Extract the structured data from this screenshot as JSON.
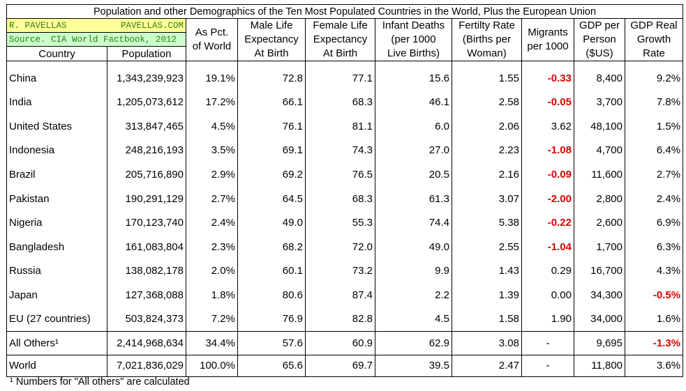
{
  "title": "Population and other Demographics of the Ten Most Populated Countries in the World, Plus the European Union",
  "credit": {
    "author": "R. PAVELLAS",
    "site": "PAVELLAS.COM"
  },
  "source": "Source. CIA World Factbook, 2012",
  "table": {
    "headers": [
      [
        "Country"
      ],
      [
        "Population"
      ],
      [
        "As Pct.",
        "of World"
      ],
      [
        "Male Life",
        "Expectancy",
        "At Birth"
      ],
      [
        "Female Life",
        "Expectancy",
        "At Birth"
      ],
      [
        "Infant Deaths",
        "(per 1000",
        "Live Births)"
      ],
      [
        "Fertilty Rate",
        "(Births per",
        "Woman)"
      ],
      [
        "Migrants",
        "per 1000"
      ],
      [
        "GDP per",
        "Person",
        "($US)"
      ],
      [
        "GDP Real",
        "Growth",
        "Rate"
      ]
    ],
    "rows": [
      [
        "China",
        "1,343,239,923",
        "19.1%",
        "72.8",
        "77.1",
        "15.6",
        "1.55",
        "-0.33",
        "8,400",
        "9.2%"
      ],
      [
        "India",
        "1,205,073,612",
        "17.2%",
        "66.1",
        "68.3",
        "46.1",
        "2.58",
        "-0.05",
        "3,700",
        "7.8%"
      ],
      [
        "United States",
        "313,847,465",
        "4.5%",
        "76.1",
        "81.1",
        "6.0",
        "2.06",
        "3.62",
        "48,100",
        "1.5%"
      ],
      [
        "Indonesia",
        "248,216,193",
        "3.5%",
        "69.1",
        "74.3",
        "27.0",
        "2.23",
        "-1.08",
        "4,700",
        "6.4%"
      ],
      [
        "Brazil",
        "205,716,890",
        "2.9%",
        "69.2",
        "76.5",
        "20.5",
        "2.16",
        "-0.09",
        "11,600",
        "2.7%"
      ],
      [
        "Pakistan",
        "190,291,129",
        "2.7%",
        "64.5",
        "68.3",
        "61.3",
        "3.07",
        "-2.00",
        "2,800",
        "2.4%"
      ],
      [
        "Nigeria",
        "170,123,740",
        "2.4%",
        "49.0",
        "55.3",
        "74.4",
        "5.38",
        "-0.22",
        "2,600",
        "6.9%"
      ],
      [
        "Bangladesh",
        "161,083,804",
        "2.3%",
        "68.2",
        "72.0",
        "49.0",
        "2.55",
        "-1.04",
        "1,700",
        "6.3%"
      ],
      [
        "Russia",
        "138,082,178",
        "2.0%",
        "60.1",
        "73.2",
        "9.9",
        "1.43",
        "0.29",
        "16,700",
        "4.3%"
      ],
      [
        "Japan",
        "127,368,088",
        "1.8%",
        "80.6",
        "87.4",
        "2.2",
        "1.39",
        "0.00",
        "34,300",
        "-0.5%"
      ],
      [
        "EU (27 countries)",
        "503,824,373",
        "7.2%",
        "76.9",
        "82.8",
        "4.5",
        "1.58",
        "1.90",
        "34,000",
        "1.6%"
      ],
      [
        "All Others¹",
        "2,414,968,634",
        "34.4%",
        "57.6",
        "60.9",
        "62.9",
        "3.08",
        "-",
        "9,695",
        "-1.3%"
      ],
      [
        "World",
        "7,021,836,029",
        "100.0%",
        "65.6",
        "69.7",
        "39.5",
        "2.47",
        "-",
        "11,800",
        "3.6%"
      ]
    ]
  },
  "footnote": "¹ Numbers for \"All others\" are calculated"
}
